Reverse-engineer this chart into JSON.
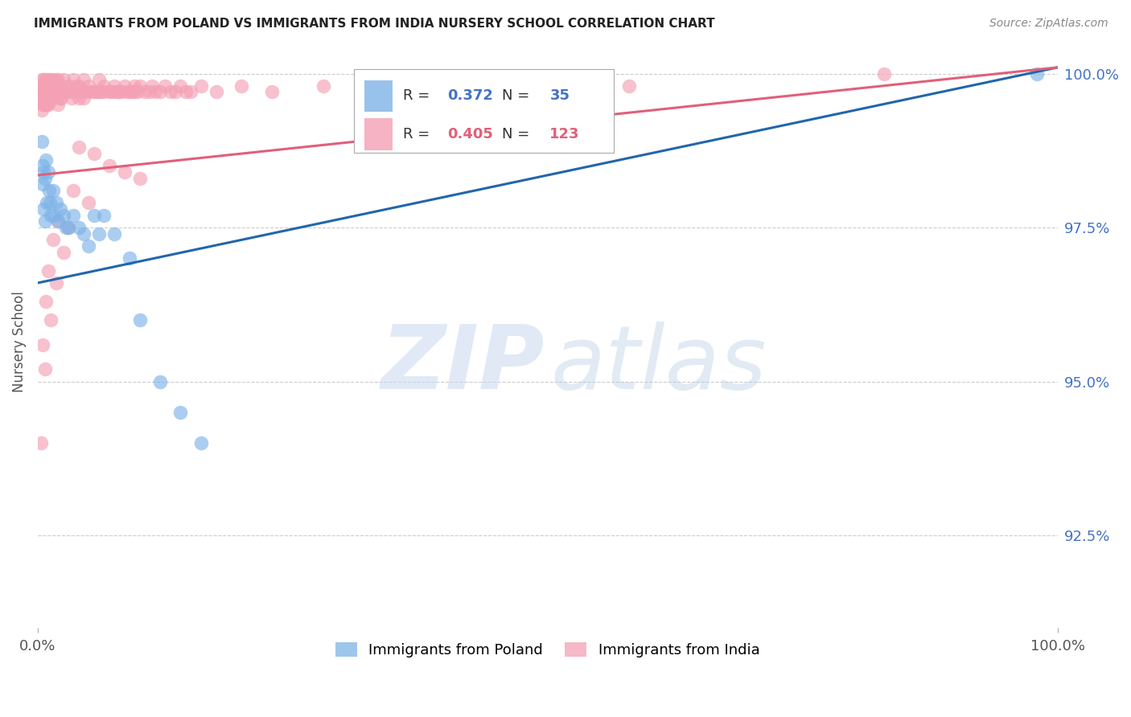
{
  "title": "IMMIGRANTS FROM POLAND VS IMMIGRANTS FROM INDIA NURSERY SCHOOL CORRELATION CHART",
  "source": "Source: ZipAtlas.com",
  "ylabel": "Nursery School",
  "xlim": [
    0.0,
    1.0
  ],
  "ylim": [
    0.91,
    1.003
  ],
  "yticks": [
    0.925,
    0.95,
    0.975,
    1.0
  ],
  "ytick_labels": [
    "92.5%",
    "95.0%",
    "97.5%",
    "100.0%"
  ],
  "xticks": [
    0.0,
    1.0
  ],
  "xtick_labels": [
    "0.0%",
    "100.0%"
  ],
  "poland_color": "#7eb3e8",
  "india_color": "#f4a0b5",
  "poland_line_color": "#2166ac",
  "india_line_color": "#e0607a",
  "poland_R": 0.372,
  "poland_N": 35,
  "india_R": 0.405,
  "india_N": 123,
  "legend_label_poland": "Immigrants from Poland",
  "legend_label_india": "Immigrants from India",
  "background_color": "#ffffff",
  "grid_color": "#cccccc",
  "poland_line_x0": 0.0,
  "poland_line_y0": 0.966,
  "poland_line_x1": 1.0,
  "poland_line_y1": 1.001,
  "india_line_x0": 0.0,
  "india_line_y0": 0.9835,
  "india_line_x1": 1.0,
  "india_line_y1": 1.001,
  "poland_x": [
    0.004,
    0.005,
    0.005,
    0.006,
    0.006,
    0.007,
    0.007,
    0.008,
    0.009,
    0.01,
    0.011,
    0.012,
    0.013,
    0.015,
    0.016,
    0.018,
    0.02,
    0.022,
    0.025,
    0.028,
    0.03,
    0.035,
    0.04,
    0.045,
    0.05,
    0.055,
    0.06,
    0.065,
    0.075,
    0.09,
    0.1,
    0.12,
    0.14,
    0.16,
    0.98
  ],
  "poland_y": [
    0.989,
    0.985,
    0.982,
    0.984,
    0.978,
    0.983,
    0.976,
    0.986,
    0.979,
    0.984,
    0.981,
    0.979,
    0.977,
    0.981,
    0.977,
    0.979,
    0.976,
    0.978,
    0.977,
    0.975,
    0.975,
    0.977,
    0.975,
    0.974,
    0.972,
    0.977,
    0.974,
    0.977,
    0.974,
    0.97,
    0.96,
    0.95,
    0.945,
    0.94,
    1.0
  ],
  "india_x": [
    0.003,
    0.003,
    0.004,
    0.004,
    0.004,
    0.005,
    0.005,
    0.005,
    0.006,
    0.006,
    0.006,
    0.007,
    0.007,
    0.008,
    0.008,
    0.008,
    0.009,
    0.009,
    0.01,
    0.01,
    0.01,
    0.011,
    0.011,
    0.012,
    0.012,
    0.013,
    0.013,
    0.014,
    0.015,
    0.015,
    0.016,
    0.016,
    0.017,
    0.018,
    0.018,
    0.019,
    0.02,
    0.02,
    0.02,
    0.022,
    0.022,
    0.023,
    0.025,
    0.025,
    0.027,
    0.028,
    0.03,
    0.032,
    0.033,
    0.035,
    0.035,
    0.038,
    0.04,
    0.04,
    0.042,
    0.045,
    0.045,
    0.048,
    0.05,
    0.052,
    0.055,
    0.058,
    0.06,
    0.06,
    0.062,
    0.065,
    0.065,
    0.07,
    0.072,
    0.075,
    0.075,
    0.078,
    0.08,
    0.082,
    0.085,
    0.088,
    0.09,
    0.092,
    0.095,
    0.095,
    0.098,
    0.1,
    0.105,
    0.11,
    0.112,
    0.115,
    0.12,
    0.125,
    0.13,
    0.135,
    0.14,
    0.145,
    0.15,
    0.16,
    0.175,
    0.2,
    0.23,
    0.28,
    0.33,
    0.38,
    0.42,
    0.48,
    0.51,
    0.58,
    0.83,
    0.04,
    0.055,
    0.07,
    0.085,
    0.1,
    0.035,
    0.05,
    0.02,
    0.03,
    0.015,
    0.025,
    0.01,
    0.018,
    0.008,
    0.013,
    0.005,
    0.007,
    0.003
  ],
  "india_y": [
    0.998,
    0.996,
    0.998,
    0.996,
    0.994,
    0.999,
    0.997,
    0.995,
    0.999,
    0.997,
    0.995,
    0.998,
    0.996,
    0.999,
    0.997,
    0.995,
    0.998,
    0.995,
    0.999,
    0.997,
    0.995,
    0.998,
    0.996,
    0.999,
    0.997,
    0.998,
    0.996,
    0.997,
    0.999,
    0.997,
    0.998,
    0.996,
    0.997,
    0.999,
    0.997,
    0.998,
    0.999,
    0.997,
    0.995,
    0.998,
    0.996,
    0.996,
    0.999,
    0.997,
    0.997,
    0.997,
    0.998,
    0.997,
    0.996,
    0.999,
    0.997,
    0.998,
    0.998,
    0.996,
    0.997,
    0.999,
    0.996,
    0.997,
    0.998,
    0.997,
    0.997,
    0.997,
    0.999,
    0.997,
    0.997,
    0.998,
    0.997,
    0.997,
    0.997,
    0.998,
    0.997,
    0.997,
    0.997,
    0.997,
    0.998,
    0.997,
    0.997,
    0.997,
    0.998,
    0.997,
    0.997,
    0.998,
    0.997,
    0.997,
    0.998,
    0.997,
    0.997,
    0.998,
    0.997,
    0.997,
    0.998,
    0.997,
    0.997,
    0.998,
    0.997,
    0.998,
    0.997,
    0.998,
    0.998,
    0.998,
    0.998,
    0.998,
    0.997,
    0.998,
    1.0,
    0.988,
    0.987,
    0.985,
    0.984,
    0.983,
    0.981,
    0.979,
    0.976,
    0.975,
    0.973,
    0.971,
    0.968,
    0.966,
    0.963,
    0.96,
    0.956,
    0.952,
    0.94
  ]
}
